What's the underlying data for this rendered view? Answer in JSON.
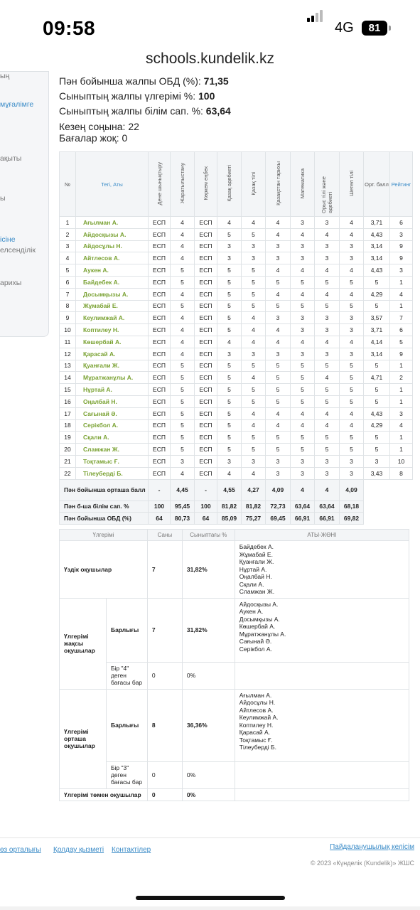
{
  "status_bar": {
    "time": "09:58",
    "network": "4G",
    "battery": "81"
  },
  "browser": {
    "url": "schools.kundelik.kz"
  },
  "sidebar": {
    "items": [
      "ың",
      "мұғалімге",
      "ақыты",
      "ы",
      "ісіне",
      "елсенділік",
      "арихы"
    ]
  },
  "summary": {
    "obd_label": "Пән бойынша жалпы ОБД (%):",
    "obd_value": "71,35",
    "progress_label": "Сыныптың жалпы үлгерімі %:",
    "progress_value": "100",
    "quality_label": "Сыныптың жалпы білім сап. %:",
    "quality_value": "63,64",
    "period_end": "Кезең соңына: 22",
    "no_grades": "Бағалар жоқ: 0"
  },
  "grade_table": {
    "headers": [
      "№",
      "Тегі, Аты",
      "Дене шынықтыру",
      "Жаратылыстану",
      "Көркем еңбек",
      "Қазақ әдебиеті",
      "Қазақ тілі",
      "Қазақстан тарихы",
      "Математика",
      "Орыс тілі және әдебиеті",
      "Шетел тілі",
      "Орт. балл",
      "Рейтинг"
    ],
    "rows": [
      [
        "1",
        "Ағылман А.",
        "ЕСП",
        "4",
        "ЕСП",
        "4",
        "4",
        "4",
        "3",
        "3",
        "4",
        "3,71",
        "6"
      ],
      [
        "2",
        "Айдосқызы А.",
        "ЕСП",
        "4",
        "ЕСП",
        "5",
        "5",
        "4",
        "4",
        "4",
        "4",
        "4,43",
        "3"
      ],
      [
        "3",
        "Айдосұлы Н.",
        "ЕСП",
        "4",
        "ЕСП",
        "3",
        "3",
        "3",
        "3",
        "3",
        "3",
        "3,14",
        "9"
      ],
      [
        "4",
        "Айтлесов А.",
        "ЕСП",
        "4",
        "ЕСП",
        "3",
        "3",
        "3",
        "3",
        "3",
        "3",
        "3,14",
        "9"
      ],
      [
        "5",
        "Аукен А.",
        "ЕСП",
        "5",
        "ЕСП",
        "5",
        "5",
        "4",
        "4",
        "4",
        "4",
        "4,43",
        "3"
      ],
      [
        "6",
        "Байдебек А.",
        "ЕСП",
        "5",
        "ЕСП",
        "5",
        "5",
        "5",
        "5",
        "5",
        "5",
        "5",
        "1"
      ],
      [
        "7",
        "Досымқызы А.",
        "ЕСП",
        "4",
        "ЕСП",
        "5",
        "5",
        "4",
        "4",
        "4",
        "4",
        "4,29",
        "4"
      ],
      [
        "8",
        "Жұмабай Е.",
        "ЕСП",
        "5",
        "ЕСП",
        "5",
        "5",
        "5",
        "5",
        "5",
        "5",
        "5",
        "1"
      ],
      [
        "9",
        "Кеулимжай А.",
        "ЕСП",
        "4",
        "ЕСП",
        "5",
        "4",
        "3",
        "3",
        "3",
        "3",
        "3,57",
        "7"
      ],
      [
        "10",
        "Коптилеу Н.",
        "ЕСП",
        "4",
        "ЕСП",
        "5",
        "4",
        "4",
        "3",
        "3",
        "3",
        "3,71",
        "6"
      ],
      [
        "11",
        "Көшербай А.",
        "ЕСП",
        "4",
        "ЕСП",
        "4",
        "4",
        "4",
        "4",
        "4",
        "4",
        "4,14",
        "5"
      ],
      [
        "12",
        "Қарасай А.",
        "ЕСП",
        "4",
        "ЕСП",
        "3",
        "3",
        "3",
        "3",
        "3",
        "3",
        "3,14",
        "9"
      ],
      [
        "13",
        "Қуанғали Ж.",
        "ЕСП",
        "5",
        "ЕСП",
        "5",
        "5",
        "5",
        "5",
        "5",
        "5",
        "5",
        "1"
      ],
      [
        "14",
        "Мұратжанұлы А.",
        "ЕСП",
        "5",
        "ЕСП",
        "5",
        "4",
        "5",
        "5",
        "4",
        "5",
        "4,71",
        "2"
      ],
      [
        "15",
        "Нұртай А.",
        "ЕСП",
        "5",
        "ЕСП",
        "5",
        "5",
        "5",
        "5",
        "5",
        "5",
        "5",
        "1"
      ],
      [
        "16",
        "Оңалбай Н.",
        "ЕСП",
        "5",
        "ЕСП",
        "5",
        "5",
        "5",
        "5",
        "5",
        "5",
        "5",
        "1"
      ],
      [
        "17",
        "Сағынай Ә.",
        "ЕСП",
        "5",
        "ЕСП",
        "5",
        "4",
        "4",
        "4",
        "4",
        "4",
        "4,43",
        "3"
      ],
      [
        "18",
        "Серікбол А.",
        "ЕСП",
        "5",
        "ЕСП",
        "5",
        "4",
        "4",
        "4",
        "4",
        "4",
        "4,29",
        "4"
      ],
      [
        "19",
        "Сқали А.",
        "ЕСП",
        "5",
        "ЕСП",
        "5",
        "5",
        "5",
        "5",
        "5",
        "5",
        "5",
        "1"
      ],
      [
        "20",
        "Сламжан Ж.",
        "ЕСП",
        "5",
        "ЕСП",
        "5",
        "5",
        "5",
        "5",
        "5",
        "5",
        "5",
        "1"
      ],
      [
        "21",
        "Тоқтамыс Ғ.",
        "ЕСП",
        "3",
        "ЕСП",
        "3",
        "3",
        "3",
        "3",
        "3",
        "3",
        "3",
        "10"
      ],
      [
        "22",
        "Тілеуберді Б.",
        "ЕСП",
        "4",
        "ЕСП",
        "4",
        "4",
        "3",
        "3",
        "3",
        "3",
        "3,43",
        "8"
      ]
    ],
    "summary_rows": [
      {
        "label": "Пән бойынша орташа балл",
        "values": [
          "-",
          "4,45",
          "-",
          "4,55",
          "4,27",
          "4,09",
          "4",
          "4",
          "4,09"
        ]
      },
      {
        "label": "Пән б-ша білім сап. %",
        "values": [
          "100",
          "95,45",
          "100",
          "81,82",
          "81,82",
          "72,73",
          "63,64",
          "63,64",
          "68,18"
        ]
      },
      {
        "label": "Пән бойынша ОБД (%)",
        "values": [
          "64",
          "80,73",
          "64",
          "85,09",
          "75,27",
          "69,45",
          "66,91",
          "66,91",
          "69,82"
        ]
      }
    ]
  },
  "progress_table": {
    "headers": [
      "Үлгерімі",
      "Саны",
      "Сыныптағы %",
      "АТЫ-ЖӨНІ"
    ],
    "excellent": {
      "label": "Үздік оқушылар",
      "count": "7",
      "percent": "31,82%",
      "names": [
        "Байдебек А.",
        "Жұмабай Е.",
        "Қуанғали Ж.",
        "Нұртай А.",
        "Оңалбай Н.",
        "Сқали А.",
        "Сламжан Ж."
      ]
    },
    "good": {
      "label": "Үлгерімі жақсы оқушылар",
      "all": {
        "label": "Барлығы",
        "count": "7",
        "percent": "31,82%",
        "names": [
          "Айдосқызы А.",
          "Аукен А.",
          "Досымқызы А.",
          "Көшербай А.",
          "Мұратжанұлы А.",
          "Сағынай Ә.",
          "Серікбол А."
        ]
      },
      "one": {
        "label": "Бір \"4\" деген бағасы бар",
        "count": "0",
        "percent": "0%"
      }
    },
    "average": {
      "label": "Үлгерімі орташа оқушылар",
      "all": {
        "label": "Барлығы",
        "count": "8",
        "percent": "36,36%",
        "names": [
          "Ағылман А.",
          "Айдосұлы Н.",
          "Айтлесов А.",
          "Кеулимжай А.",
          "Коптилеу Н.",
          "Қарасай А.",
          "Тоқтамыс Ғ.",
          "Тілеуберді Б."
        ]
      },
      "one": {
        "label": "Бір \"3\" деген бағасы бар",
        "count": "0",
        "percent": "0%"
      }
    },
    "low": {
      "label": "Үлгерімі төмен оқушылар",
      "count": "0",
      "percent": "0%"
    }
  },
  "footer": {
    "links": [
      "өз орталығы",
      "Қолдау қызметі",
      "Контактілер"
    ],
    "agreement": "Пайдаланушылық келісім",
    "copyright": "© 2023 «Күнделік (Kundelik)» ЖШС"
  }
}
